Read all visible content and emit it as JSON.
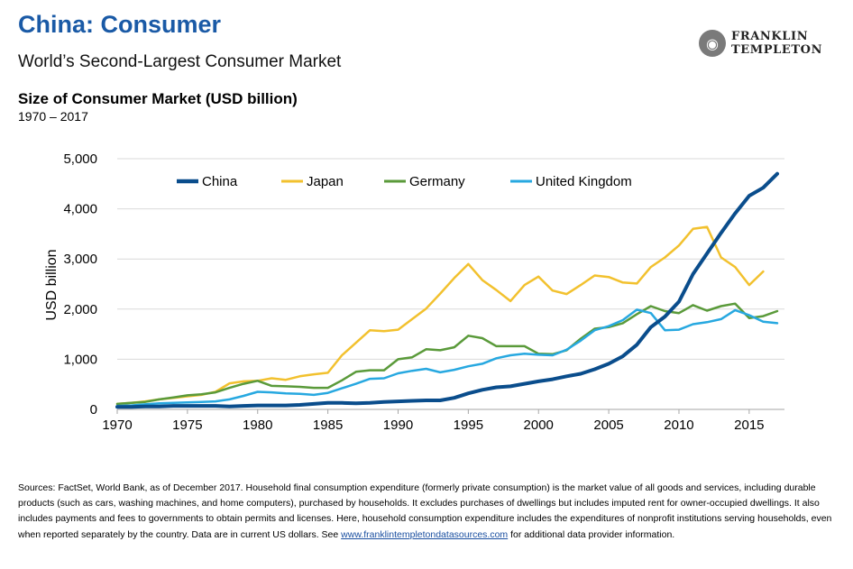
{
  "header": {
    "title": "China: Consumer",
    "subtitle": "World’s Second-Largest Consumer Market",
    "chart_title": "Size of Consumer Market (USD billion)",
    "chart_range": "1970 – 2017"
  },
  "logo": {
    "line1": "FRANKLIN",
    "line2": "TEMPLETON",
    "icon": "franklin-portrait-icon"
  },
  "footnote": {
    "text_before_link": "Sources: FactSet, World Bank, as of December 2017. Household final consumption expenditure (formerly private consumption) is the market value of all goods and services, including durable products (such as cars, washing machines, and home computers), purchased by households. It excludes purchases of dwellings but includes imputed rent for owner-occupied dwellings. It also includes payments and fees to governments to obtain permits and licenses. Here, household consumption expenditure includes the expenditures of nonprofit institutions serving households, even when reported separately by the country. Data are in current US dollars. See ",
    "link_text": "www.franklintempletondatasources.com",
    "text_after_link": " for additional data provider information."
  },
  "chart_data": {
    "type": "line",
    "title": "Size of Consumer Market (USD billion)",
    "subtitle": "1970 – 2017",
    "xlabel": "",
    "ylabel": "USD billion",
    "xlim": [
      1970,
      2017
    ],
    "ylim": [
      0,
      5000
    ],
    "xticks": [
      1970,
      1975,
      1980,
      1985,
      1990,
      1995,
      2000,
      2005,
      2010,
      2015
    ],
    "yticks": [
      0,
      1000,
      2000,
      3000,
      4000,
      5000
    ],
    "ytick_labels": [
      "0",
      "1,000",
      "2,000",
      "3,000",
      "4,000",
      "5,000"
    ],
    "grid": "horizontal",
    "legend_position": "top",
    "x": [
      1970,
      1971,
      1972,
      1973,
      1974,
      1975,
      1976,
      1977,
      1978,
      1979,
      1980,
      1981,
      1982,
      1983,
      1984,
      1985,
      1986,
      1987,
      1988,
      1989,
      1990,
      1991,
      1992,
      1993,
      1994,
      1995,
      1996,
      1997,
      1998,
      1999,
      2000,
      2001,
      2002,
      2003,
      2004,
      2005,
      2006,
      2007,
      2008,
      2009,
      2010,
      2011,
      2012,
      2013,
      2014,
      2015,
      2016,
      2017
    ],
    "series": [
      {
        "name": "China",
        "color": "#0a4d8c",
        "width": 4,
        "values": [
          50,
          50,
          60,
          60,
          70,
          70,
          70,
          70,
          60,
          70,
          80,
          80,
          80,
          90,
          110,
          130,
          130,
          120,
          130,
          150,
          160,
          170,
          180,
          180,
          230,
          320,
          390,
          440,
          460,
          510,
          560,
          600,
          660,
          710,
          800,
          910,
          1060,
          1290,
          1640,
          1850,
          2150,
          2700,
          3110,
          3520,
          3910,
          4260,
          4420,
          4700
        ]
      },
      {
        "name": "Japan",
        "color": "#f2c12e",
        "width": 2.5,
        "values": [
          110,
          130,
          160,
          200,
          230,
          260,
          290,
          350,
          520,
          560,
          570,
          620,
          590,
          660,
          700,
          730,
          1080,
          1330,
          1580,
          1560,
          1590,
          1800,
          2010,
          2310,
          2620,
          2900,
          2580,
          2380,
          2160,
          2480,
          2650,
          2370,
          2300,
          2480,
          2670,
          2640,
          2530,
          2510,
          2840,
          3030,
          3270,
          3600,
          3640,
          3030,
          2840,
          2480,
          2750,
          null
        ]
      },
      {
        "name": "Germany",
        "color": "#5a9a3a",
        "width": 2.5,
        "values": [
          110,
          130,
          150,
          200,
          240,
          280,
          300,
          340,
          430,
          510,
          570,
          470,
          460,
          450,
          430,
          430,
          580,
          750,
          780,
          780,
          1000,
          1040,
          1200,
          1180,
          1240,
          1470,
          1420,
          1260,
          1260,
          1260,
          1110,
          1100,
          1180,
          1410,
          1610,
          1640,
          1720,
          1900,
          2060,
          1960,
          1920,
          2080,
          1970,
          2060,
          2110,
          1820,
          1860,
          1960
        ]
      },
      {
        "name": "United Kingdom",
        "color": "#27a8e0",
        "width": 2.5,
        "values": [
          70,
          80,
          100,
          120,
          130,
          140,
          150,
          160,
          200,
          270,
          350,
          340,
          320,
          310,
          290,
          330,
          420,
          510,
          610,
          620,
          720,
          770,
          810,
          740,
          790,
          860,
          910,
          1020,
          1080,
          1110,
          1090,
          1080,
          1190,
          1370,
          1580,
          1660,
          1780,
          1990,
          1920,
          1580,
          1590,
          1700,
          1740,
          1800,
          1980,
          1880,
          1750,
          1720
        ]
      }
    ]
  }
}
